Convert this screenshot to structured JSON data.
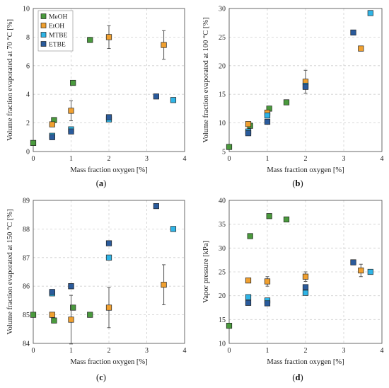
{
  "chart_data": [
    {
      "type": "scatter",
      "panel_label": "a",
      "xlabel": "Mass fraction oxygen [%]",
      "ylabel": "Volume fraction evaporated at 70 °C [%]",
      "xlim": [
        0,
        4
      ],
      "ylim": [
        0,
        10
      ],
      "xticks": [
        "0",
        "1",
        "2",
        "3",
        "4"
      ],
      "yticks": [
        "0",
        "2",
        "4",
        "6",
        "8",
        "10"
      ],
      "xtick_values": [
        0,
        1,
        2,
        3,
        4
      ],
      "ytick_values": [
        0,
        2,
        4,
        6,
        8,
        10
      ],
      "grid": true,
      "legend_position": "top-left",
      "series": [
        {
          "name": "MeOH",
          "color": "#4a9a3d",
          "points": [
            {
              "x": 0,
              "y": 0.6
            },
            {
              "x": 0.55,
              "y": 2.2
            },
            {
              "x": 1.05,
              "y": 4.8
            },
            {
              "x": 1.5,
              "y": 7.8
            }
          ]
        },
        {
          "name": "EtOH",
          "color": "#f0a030",
          "points": [
            {
              "x": 0.5,
              "y": 1.9
            },
            {
              "x": 1.0,
              "y": 2.85,
              "err": 0.7
            },
            {
              "x": 2.0,
              "y": 8.0,
              "err": 0.8
            },
            {
              "x": 3.45,
              "y": 7.45,
              "err": 1.0
            }
          ]
        },
        {
          "name": "MTBE",
          "color": "#2fb4e6",
          "points": [
            {
              "x": 0.5,
              "y": 1.1
            },
            {
              "x": 1.0,
              "y": 1.55
            },
            {
              "x": 2.0,
              "y": 2.25
            },
            {
              "x": 3.7,
              "y": 3.6
            }
          ]
        },
        {
          "name": "ETBE",
          "color": "#2a5b9c",
          "points": [
            {
              "x": 0.5,
              "y": 1.0
            },
            {
              "x": 1.0,
              "y": 1.4
            },
            {
              "x": 2.0,
              "y": 2.4
            },
            {
              "x": 3.25,
              "y": 3.85
            }
          ]
        }
      ]
    },
    {
      "type": "scatter",
      "panel_label": "b",
      "xlabel": "Mass fraction oxygen [%]",
      "ylabel": "Volume fraction evaporated at 100 °C [%]",
      "xlim": [
        0,
        4
      ],
      "ylim": [
        5,
        30
      ],
      "xticks": [
        "0",
        "1",
        "2",
        "3",
        "4"
      ],
      "yticks": [
        "5",
        "10",
        "15",
        "20",
        "25",
        "30"
      ],
      "xtick_values": [
        0,
        1,
        2,
        3,
        4
      ],
      "ytick_values": [
        5,
        10,
        15,
        20,
        25,
        30
      ],
      "grid": true,
      "series": [
        {
          "name": "MeOH",
          "color": "#4a9a3d",
          "points": [
            {
              "x": 0,
              "y": 5.8
            },
            {
              "x": 0.55,
              "y": 9.5
            },
            {
              "x": 1.05,
              "y": 12.5
            },
            {
              "x": 1.5,
              "y": 13.6
            }
          ]
        },
        {
          "name": "EtOH",
          "color": "#f0a030",
          "points": [
            {
              "x": 0.5,
              "y": 9.8
            },
            {
              "x": 1.0,
              "y": 11.8
            },
            {
              "x": 2.0,
              "y": 17.2,
              "err": 2.0
            },
            {
              "x": 3.45,
              "y": 23.0
            }
          ]
        },
        {
          "name": "MTBE",
          "color": "#2fb4e6",
          "points": [
            {
              "x": 0.5,
              "y": 8.5
            },
            {
              "x": 1.0,
              "y": 11.3
            },
            {
              "x": 2.0,
              "y": 16.5
            },
            {
              "x": 3.7,
              "y": 29.2
            }
          ]
        },
        {
          "name": "ETBE",
          "color": "#2a5b9c",
          "points": [
            {
              "x": 0.5,
              "y": 8.2
            },
            {
              "x": 1.0,
              "y": 10.2
            },
            {
              "x": 2.0,
              "y": 16.3
            },
            {
              "x": 3.25,
              "y": 25.8
            }
          ]
        }
      ]
    },
    {
      "type": "scatter",
      "panel_label": "c",
      "xlabel": "Mass fraction oxygen [%]",
      "ylabel": "Volume fraction evaporated at 150 °C [%]",
      "xlim": [
        0,
        4
      ],
      "ylim": [
        84,
        89
      ],
      "xticks": [
        "0",
        "1",
        "2",
        "3",
        "4"
      ],
      "yticks": [
        "84",
        "85",
        "86",
        "87",
        "88",
        "89"
      ],
      "xtick_values": [
        0,
        1,
        2,
        3,
        4
      ],
      "ytick_values": [
        84,
        85,
        86,
        87,
        88,
        89
      ],
      "grid": true,
      "series": [
        {
          "name": "MeOH",
          "color": "#4a9a3d",
          "points": [
            {
              "x": 0,
              "y": 85.0
            },
            {
              "x": 0.55,
              "y": 84.8
            },
            {
              "x": 1.05,
              "y": 85.25
            },
            {
              "x": 1.5,
              "y": 85.0
            }
          ]
        },
        {
          "name": "EtOH",
          "color": "#f0a030",
          "points": [
            {
              "x": 0.5,
              "y": 85.0
            },
            {
              "x": 1.0,
              "y": 84.83,
              "err": 0.85
            },
            {
              "x": 2.0,
              "y": 85.25,
              "err": 0.7
            },
            {
              "x": 3.45,
              "y": 86.05,
              "err": 0.7
            }
          ]
        },
        {
          "name": "MTBE",
          "color": "#2fb4e6",
          "points": [
            {
              "x": 0.5,
              "y": 85.75
            },
            {
              "x": 1.0,
              "y": 86.0
            },
            {
              "x": 2.0,
              "y": 87.0
            },
            {
              "x": 3.7,
              "y": 88.0
            }
          ]
        },
        {
          "name": "ETBE",
          "color": "#2a5b9c",
          "points": [
            {
              "x": 0.5,
              "y": 85.8
            },
            {
              "x": 1.0,
              "y": 86.0
            },
            {
              "x": 2.0,
              "y": 87.5
            },
            {
              "x": 3.25,
              "y": 88.8
            }
          ]
        }
      ]
    },
    {
      "type": "scatter",
      "panel_label": "d",
      "xlabel": "Mass fraction oxygen [%]",
      "ylabel": "Vapor pressure [kPa]",
      "xlim": [
        0,
        4
      ],
      "ylim": [
        10,
        40
      ],
      "xticks": [
        "0",
        "1",
        "2",
        "3",
        "4"
      ],
      "yticks": [
        "10",
        "15",
        "20",
        "25",
        "30",
        "35",
        "40"
      ],
      "xtick_values": [
        0,
        1,
        2,
        3,
        4
      ],
      "ytick_values": [
        10,
        15,
        20,
        25,
        30,
        35,
        40
      ],
      "grid": true,
      "series": [
        {
          "name": "MeOH",
          "color": "#4a9a3d",
          "points": [
            {
              "x": 0,
              "y": 13.7
            },
            {
              "x": 0.55,
              "y": 32.5
            },
            {
              "x": 1.05,
              "y": 36.7
            },
            {
              "x": 1.5,
              "y": 36.0
            }
          ]
        },
        {
          "name": "EtOH",
          "color": "#f0a030",
          "points": [
            {
              "x": 0.5,
              "y": 23.2
            },
            {
              "x": 1.0,
              "y": 23.0,
              "err": 1.0
            },
            {
              "x": 2.0,
              "y": 24.0,
              "err": 1.0
            },
            {
              "x": 3.45,
              "y": 25.3,
              "err": 1.3
            }
          ]
        },
        {
          "name": "MTBE",
          "color": "#2fb4e6",
          "points": [
            {
              "x": 0.5,
              "y": 19.7
            },
            {
              "x": 1.0,
              "y": 19.0
            },
            {
              "x": 2.0,
              "y": 20.6
            },
            {
              "x": 3.7,
              "y": 25.0
            }
          ]
        },
        {
          "name": "ETBE",
          "color": "#2a5b9c",
          "points": [
            {
              "x": 0.5,
              "y": 18.5
            },
            {
              "x": 1.0,
              "y": 18.4
            },
            {
              "x": 2.0,
              "y": 21.8
            },
            {
              "x": 3.25,
              "y": 27.0
            }
          ]
        }
      ]
    }
  ]
}
